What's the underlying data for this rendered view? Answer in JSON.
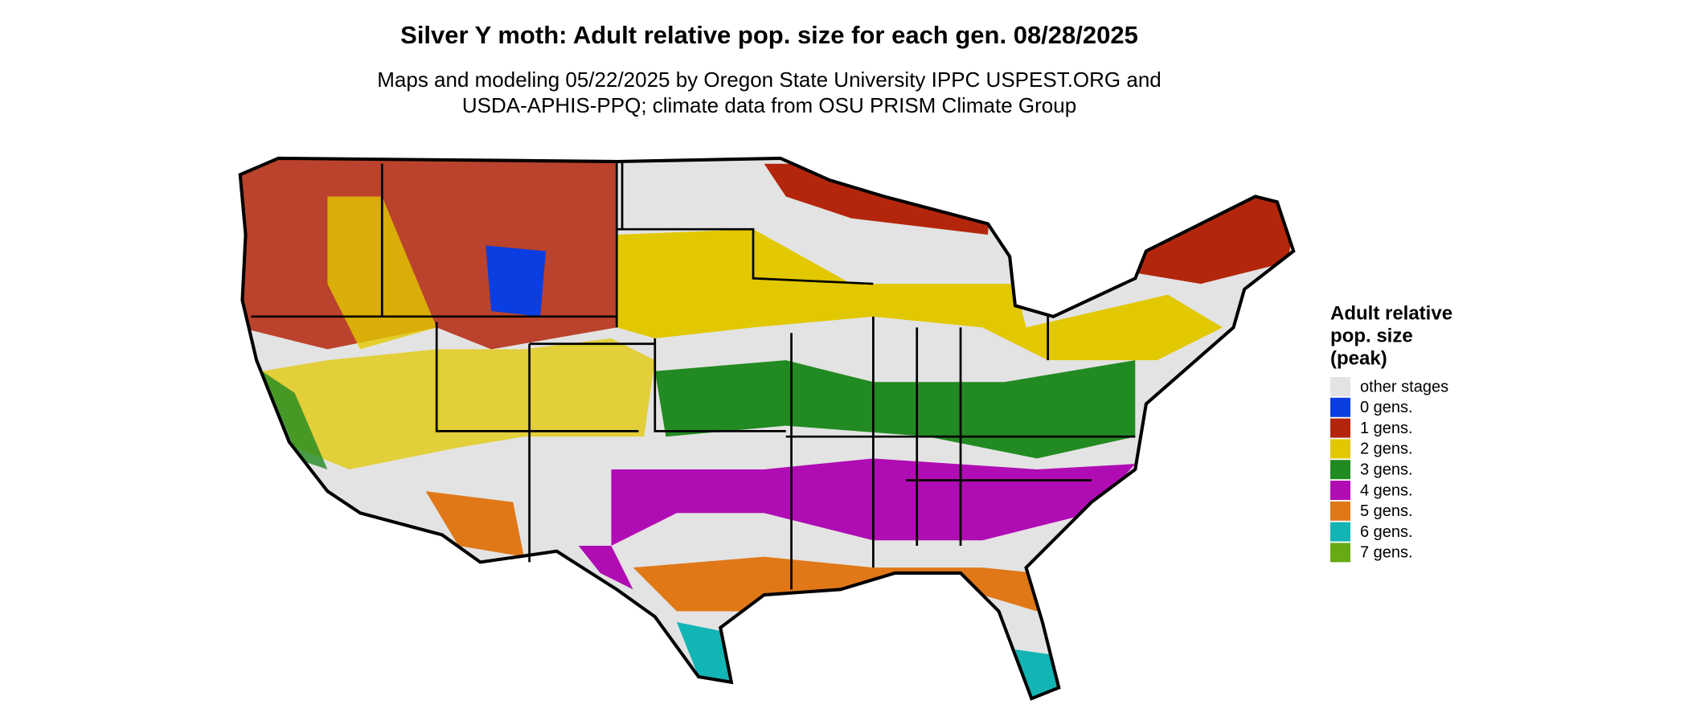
{
  "header": {
    "title": "Silver Y moth: Adult relative pop. size for each gen. 08/28/2025",
    "subtitle_lines": [
      "Maps and modeling 05/22/2025 by Oregon State University IPPC USPEST.ORG and",
      "USDA-APHIS-PPQ; climate data from OSU PRISM Climate Group"
    ]
  },
  "legend": {
    "title_lines": [
      "Adult relative",
      "pop. size",
      "(peak)"
    ],
    "items": [
      {
        "label": "other stages",
        "color": "#e3e3e3"
      },
      {
        "label": "0 gens.",
        "color": "#0a3ee0"
      },
      {
        "label": "1 gens.",
        "color": "#b4260c"
      },
      {
        "label": "2 gens.",
        "color": "#e2c800"
      },
      {
        "label": "3 gens.",
        "color": "#228a22"
      },
      {
        "label": "4 gens.",
        "color": "#b00cb4"
      },
      {
        "label": "5 gens.",
        "color": "#e07818"
      },
      {
        "label": "6 gens.",
        "color": "#12b4b4"
      },
      {
        "label": "7 gens.",
        "color": "#66aa14"
      }
    ]
  }
}
